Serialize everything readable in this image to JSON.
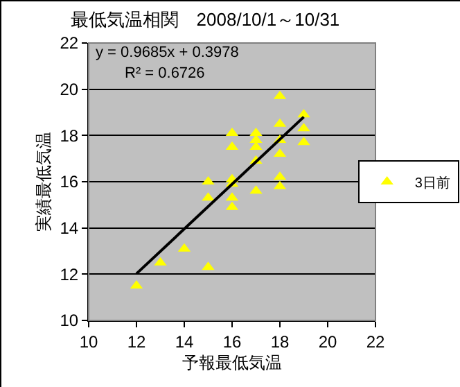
{
  "chart_data": {
    "type": "scatter",
    "title": "最低気温相関　2008/10/1～10/31",
    "xlabel": "予報最低気温",
    "ylabel": "実績最低気温",
    "annotations": [
      "y = 0.9685x + 0.3978",
      "R² = 0.6726"
    ],
    "series": [
      {
        "name": "3日前",
        "marker": "triangle",
        "color": "#ffff00",
        "x": [
          12,
          13,
          14,
          15,
          15,
          15,
          16,
          16,
          16,
          16,
          16,
          16,
          17,
          17,
          17,
          17,
          17,
          18,
          18,
          18,
          18,
          18,
          18,
          19,
          19,
          19
        ],
        "values": [
          11.5,
          12.5,
          13.1,
          12.3,
          15.3,
          16.0,
          18.1,
          17.5,
          16.1,
          15.9,
          15.3,
          14.9,
          18.1,
          17.8,
          17.5,
          16.9,
          15.6,
          19.7,
          18.5,
          17.8,
          17.2,
          16.2,
          15.8,
          18.9,
          18.3,
          17.7
        ]
      },
      {
        "type": "line",
        "marker": "none",
        "color": "#000000",
        "x": [
          12,
          19
        ],
        "values": [
          12.02,
          18.8
        ]
      }
    ],
    "xlim": [
      10,
      22
    ],
    "xticks": [
      10,
      12,
      14,
      16,
      18,
      20,
      22
    ],
    "ylim": [
      10,
      22
    ],
    "yticks": [
      10,
      12,
      14,
      16,
      18,
      20,
      22
    ],
    "grid": "y",
    "legend": "right"
  }
}
